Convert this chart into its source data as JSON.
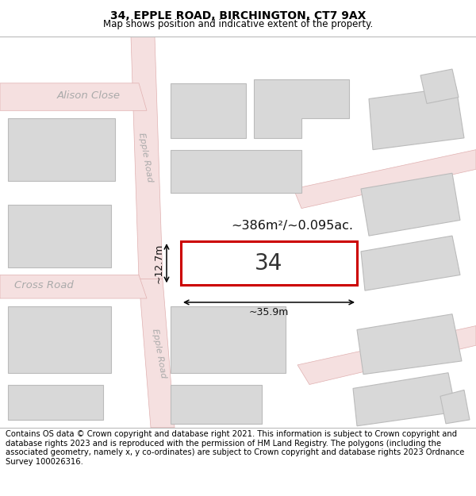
{
  "title": "34, EPPLE ROAD, BIRCHINGTON, CT7 9AX",
  "subtitle": "Map shows position and indicative extent of the property.",
  "footer": "Contains OS data © Crown copyright and database right 2021. This information is subject to Crown copyright and database rights 2023 and is reproduced with the permission of HM Land Registry. The polygons (including the associated geometry, namely x, y co-ordinates) are subject to Crown copyright and database rights 2023 Ordnance Survey 100026316.",
  "map_background": "#ffffff",
  "road_color": "#f5e0e0",
  "road_stroke": "#e0b0b0",
  "building_fill": "#d8d8d8",
  "building_stroke": "#bbbbbb",
  "highlight_fill": "#ffffff",
  "highlight_stroke": "#cc0000",
  "label_road1_top": "Epple Road",
  "label_road2_bottom": "Epple Road",
  "label_cross_road": "Cross Road",
  "label_alison_close": "Alison Close",
  "label_number": "34",
  "area_label": "~386m²/~0.095ac.",
  "dim_width": "~35.9m",
  "dim_height": "~12.7m",
  "title_fontsize": 10,
  "subtitle_fontsize": 8.5,
  "footer_fontsize": 7.2,
  "footer_bg": "#f0f0f0"
}
